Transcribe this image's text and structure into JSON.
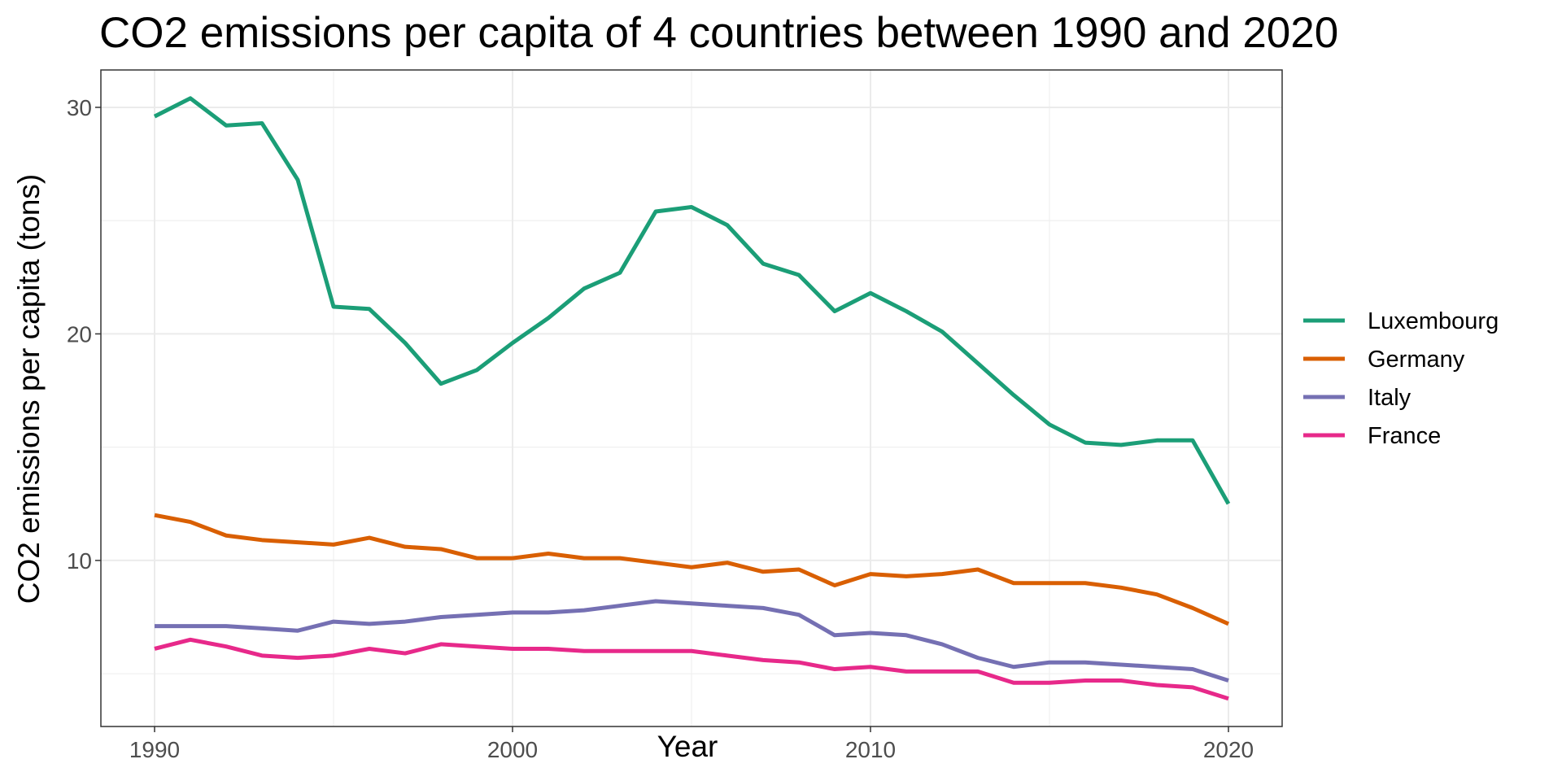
{
  "chart_data": {
    "type": "line",
    "title": "CO2 emissions per capita of 4 countries between 1990 and 2020",
    "xlabel": "Year",
    "ylabel": "CO2 emissions per capita (tons)",
    "xlim": [
      1988.5,
      2021.5
    ],
    "ylim": [
      2.67,
      31.65
    ],
    "xticks": [
      1990,
      2000,
      2010,
      2020
    ],
    "yticks": [
      10,
      20,
      30
    ],
    "grid": true,
    "legend_position": "right",
    "x": [
      1990,
      1991,
      1992,
      1993,
      1994,
      1995,
      1996,
      1997,
      1998,
      1999,
      2000,
      2001,
      2002,
      2003,
      2004,
      2005,
      2006,
      2007,
      2008,
      2009,
      2010,
      2011,
      2012,
      2013,
      2014,
      2015,
      2016,
      2017,
      2018,
      2019,
      2020
    ],
    "series": [
      {
        "name": "Luxembourg",
        "color": "#1B9E77",
        "values": [
          29.6,
          30.4,
          29.2,
          29.3,
          26.8,
          21.2,
          21.1,
          19.6,
          17.8,
          18.4,
          19.6,
          20.7,
          22.0,
          22.7,
          25.4,
          25.6,
          24.8,
          23.1,
          22.6,
          21.0,
          21.8,
          21.0,
          20.1,
          18.7,
          17.3,
          16.0,
          15.2,
          15.1,
          15.3,
          15.3,
          12.5
        ]
      },
      {
        "name": "Germany",
        "color": "#D95F02",
        "values": [
          12.0,
          11.7,
          11.1,
          10.9,
          10.8,
          10.7,
          11.0,
          10.6,
          10.5,
          10.1,
          10.1,
          10.3,
          10.1,
          10.1,
          9.9,
          9.7,
          9.9,
          9.5,
          9.6,
          8.9,
          9.4,
          9.3,
          9.4,
          9.6,
          9.0,
          9.0,
          9.0,
          8.8,
          8.5,
          7.9,
          7.2
        ]
      },
      {
        "name": "Italy",
        "color": "#7570B3",
        "values": [
          7.1,
          7.1,
          7.1,
          7.0,
          6.9,
          7.3,
          7.2,
          7.3,
          7.5,
          7.6,
          7.7,
          7.7,
          7.8,
          8.0,
          8.2,
          8.1,
          8.0,
          7.9,
          7.6,
          6.7,
          6.8,
          6.7,
          6.3,
          5.7,
          5.3,
          5.5,
          5.5,
          5.4,
          5.3,
          5.2,
          4.7
        ]
      },
      {
        "name": "France",
        "color": "#E7298A",
        "values": [
          6.1,
          6.5,
          6.2,
          5.8,
          5.7,
          5.8,
          6.1,
          5.9,
          6.3,
          6.2,
          6.1,
          6.1,
          6.0,
          6.0,
          6.0,
          6.0,
          5.8,
          5.6,
          5.5,
          5.2,
          5.3,
          5.1,
          5.1,
          5.1,
          4.6,
          4.6,
          4.7,
          4.7,
          4.5,
          4.4,
          3.9
        ]
      }
    ]
  }
}
